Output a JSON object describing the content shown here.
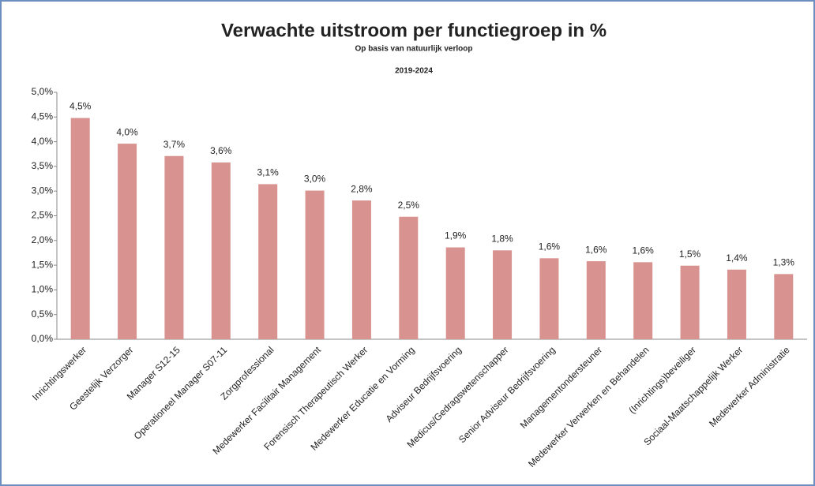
{
  "chart_data": {
    "type": "bar",
    "title": "Verwachte uitstroom per functiegroep in %",
    "subtitle": "Op basis van natuurlijk verloop",
    "period": "2019-2024",
    "categories": [
      "Inrichtingswerker",
      "Geestelijk Verzorger",
      "Manager S12-15",
      "Operationeel Manager S07-11",
      "Zorgprofessional",
      "Medewerker Facilitair Management",
      "Forensisch Therapeutisch Werker",
      "Medewerker Educatie en Vorming",
      "Adviseur Bedrijfsvoering",
      "Medicus/Gedragswetenschapper",
      "Senior Adviseur Bedrijfsvoering",
      "Managementondersteuner",
      "Medewerker Verwerken en Behandelen",
      "(Inrichtings)beveiliger",
      "Sociaal-Maatschappelijk Werker",
      "Medewerker Administratie"
    ],
    "values": [
      4.48,
      3.96,
      3.71,
      3.58,
      3.14,
      3.01,
      2.81,
      2.48,
      1.86,
      1.8,
      1.64,
      1.58,
      1.56,
      1.49,
      1.41,
      1.32
    ],
    "value_labels": [
      "4,5%",
      "4,0%",
      "3,7%",
      "3,6%",
      "3,1%",
      "3,0%",
      "2,8%",
      "2,5%",
      "1,9%",
      "1,8%",
      "1,6%",
      "1,6%",
      "1,6%",
      "1,5%",
      "1,4%",
      "1,3%"
    ],
    "color": "#d8928f",
    "ylim": [
      0,
      5
    ],
    "yticks": [
      {
        "value": 0,
        "label": "0,0%"
      },
      {
        "value": 0.5,
        "label": "0,5%"
      },
      {
        "value": 1,
        "label": "1,0%"
      },
      {
        "value": 1.5,
        "label": "1,5%"
      },
      {
        "value": 2,
        "label": "2,0%"
      },
      {
        "value": 2.5,
        "label": "2,5%"
      },
      {
        "value": 3,
        "label": "3,0%"
      },
      {
        "value": 3.5,
        "label": "3,5%"
      },
      {
        "value": 4,
        "label": "4,0%"
      },
      {
        "value": 4.5,
        "label": "4,5%"
      },
      {
        "value": 5,
        "label": "5,0%"
      }
    ],
    "grid": false
  }
}
